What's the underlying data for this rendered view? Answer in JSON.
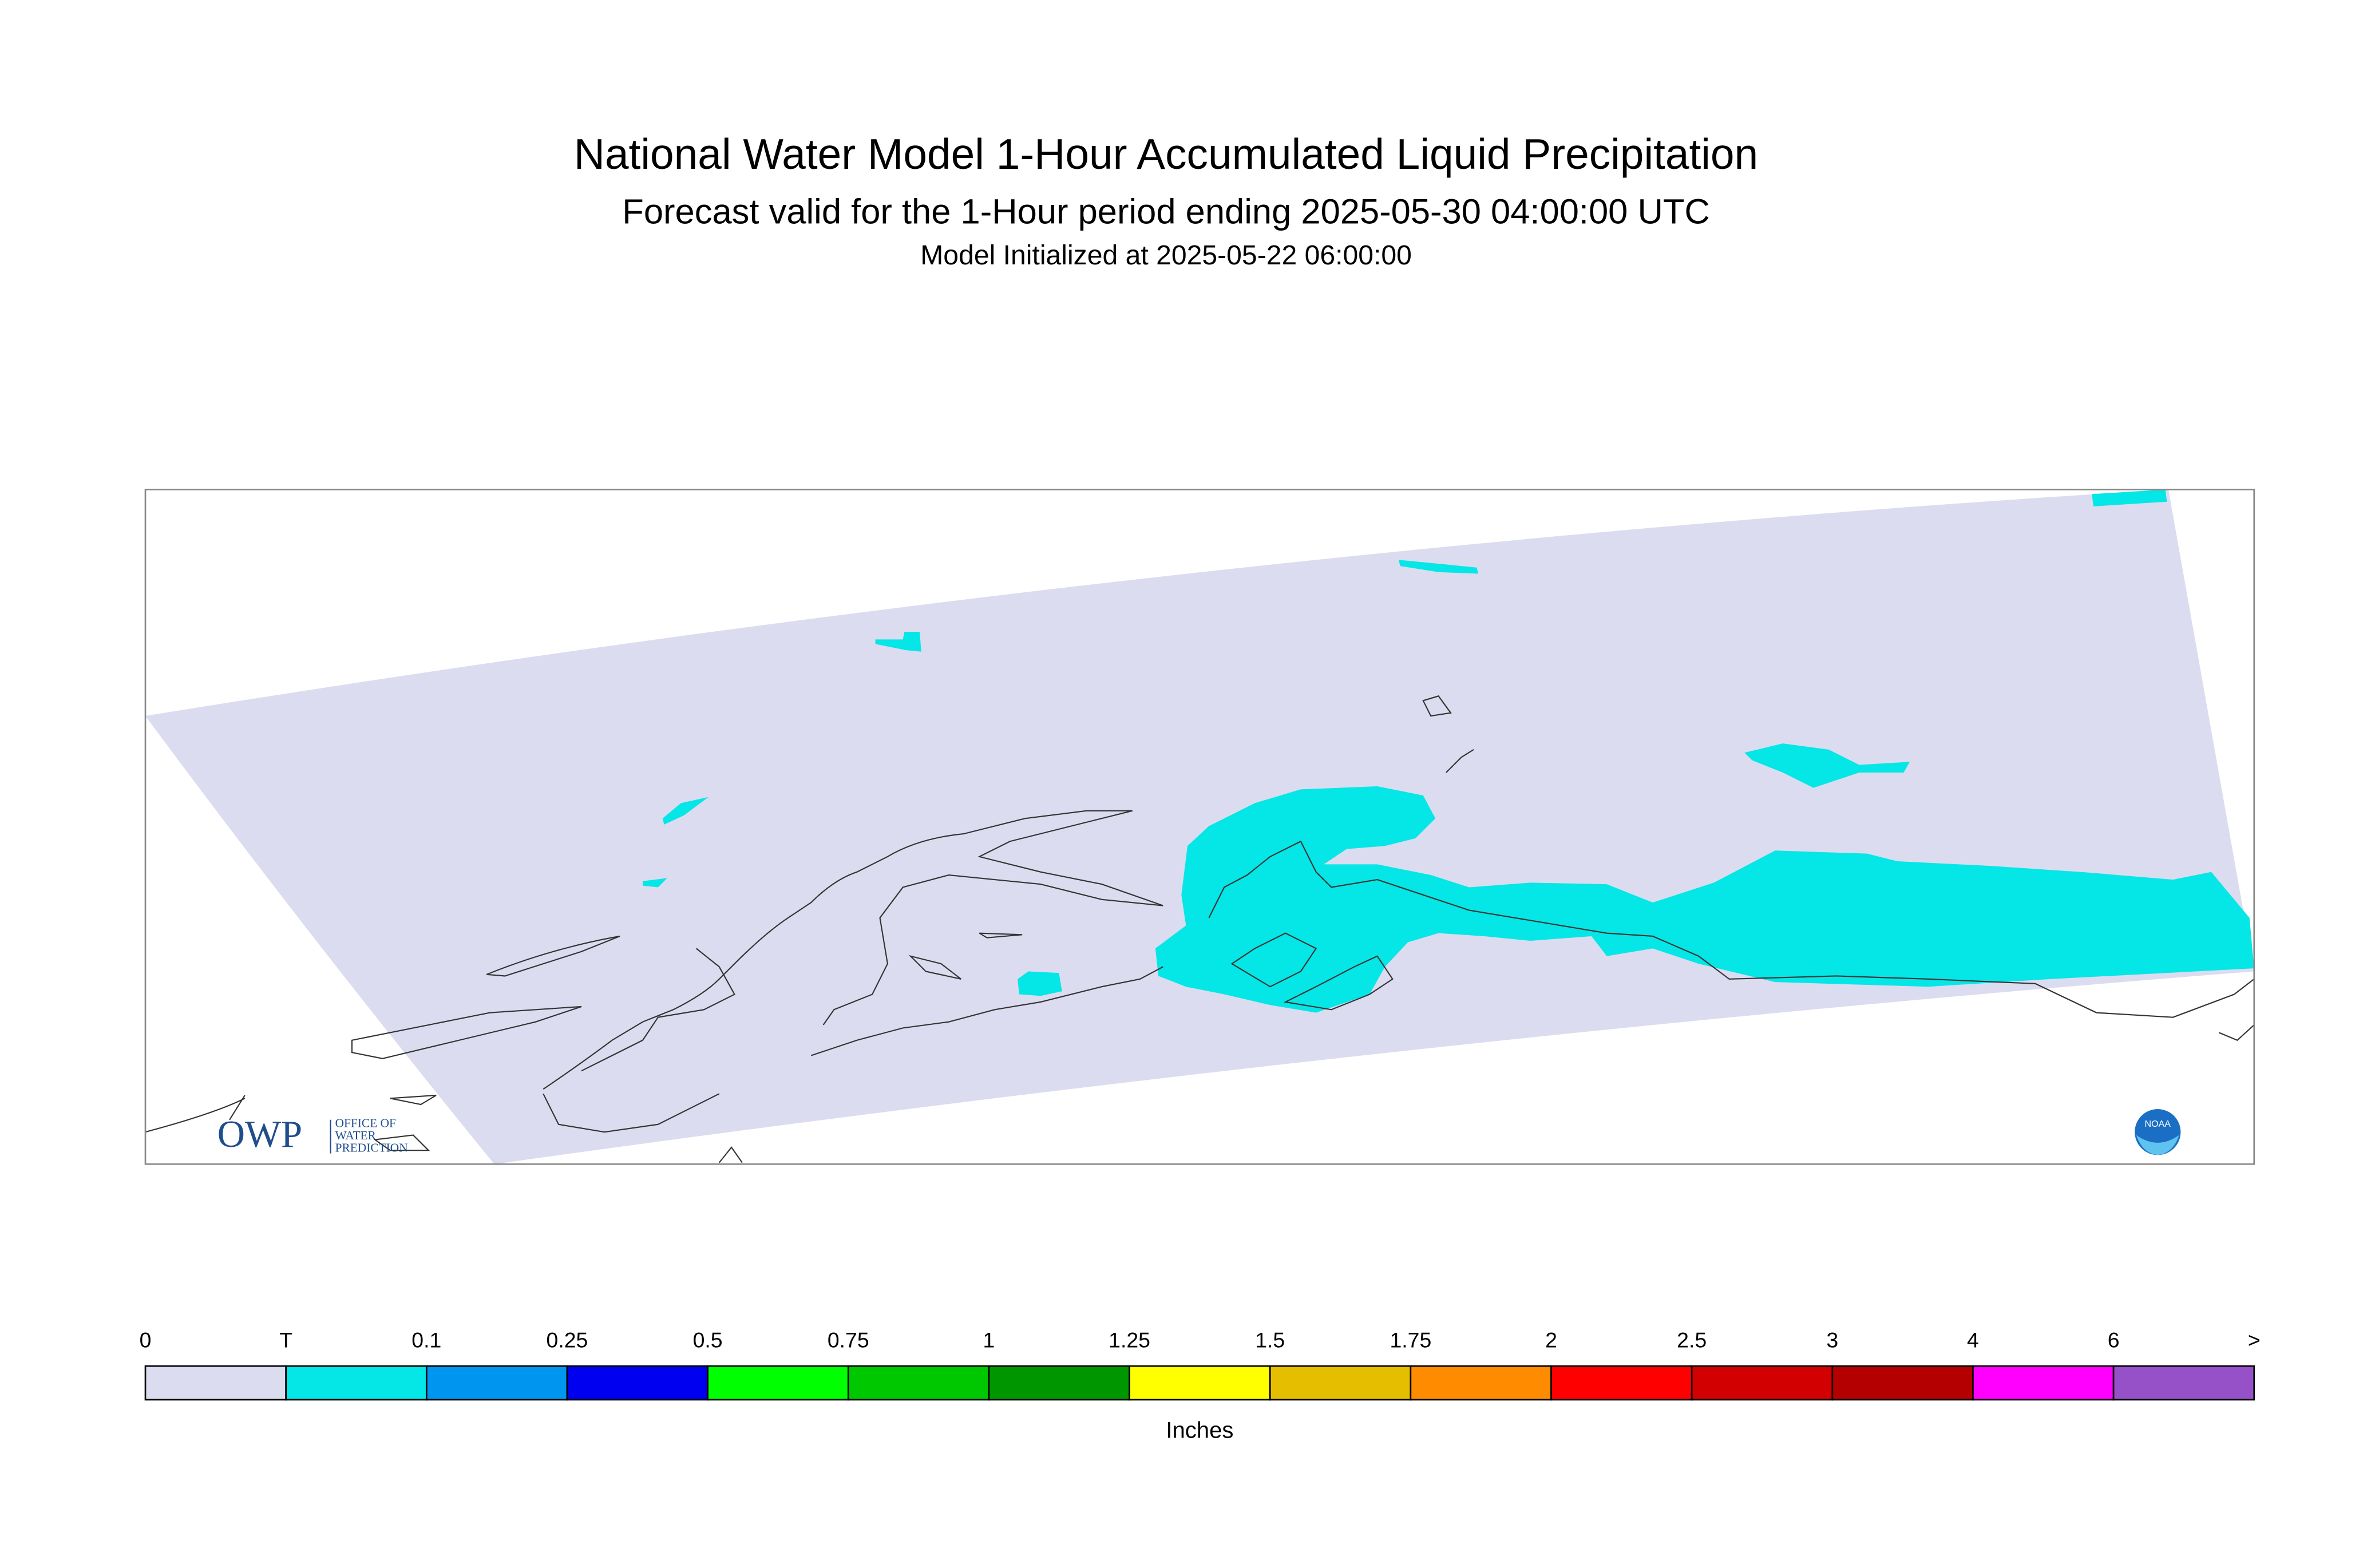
{
  "header": {
    "title": "National Water Model 1-Hour Accumulated Liquid Precipitation",
    "subtitle": "Forecast valid for the 1-Hour period ending 2025-05-30 04:00:00 UTC",
    "initialized": "Model Initialized at 2025-05-22 06:00:00"
  },
  "legend": {
    "labels": [
      "0",
      "T",
      "0.1",
      "0.25",
      "0.5",
      "0.75",
      "1",
      "1.25",
      "1.5",
      "1.75",
      "2",
      "2.5",
      "3",
      "4",
      "6",
      ">"
    ],
    "colors": [
      "#dcdcf0",
      "#05e6e6",
      "#0096f0",
      "#0000f0",
      "#00ff00",
      "#00c800",
      "#009600",
      "#ffff00",
      "#e6be00",
      "#ff8c00",
      "#ff0000",
      "#d20000",
      "#b40000",
      "#ff00ff",
      "#9650c8"
    ],
    "unit": "Inches"
  },
  "logos": {
    "owp": "OWP",
    "owp_lines": [
      "OFFICE OF",
      "WATER",
      "PREDICTION"
    ],
    "noaa": "NOAA"
  }
}
